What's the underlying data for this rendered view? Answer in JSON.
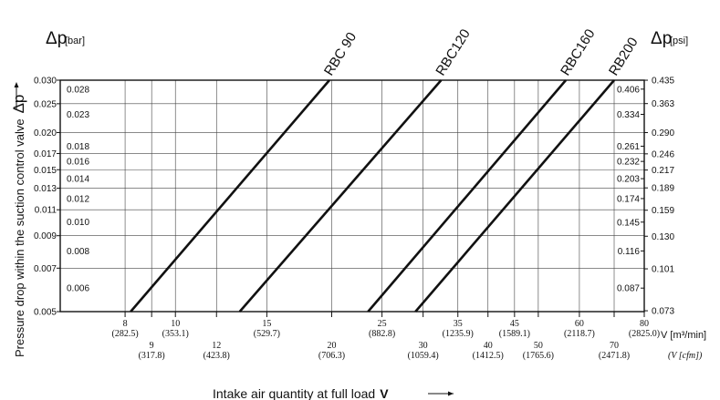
{
  "chart_data": {
    "type": "line",
    "xlabel": "Intake air quantity at full load",
    "xlabel_symbol": "V",
    "ylabel": "Pressure drop within the suction control valve",
    "ylabel_symbol": "Δp",
    "left_unit_symbol": "Δp",
    "left_unit": "[bar]",
    "right_unit_symbol": "Δp",
    "right_unit": "[psi]",
    "x_unit_primary": "V [m³/min]",
    "x_unit_secondary": "(V [cfm])",
    "xlim": [
      6,
      80
    ],
    "ylim": [
      0.005,
      0.03
    ],
    "y_scale": "log",
    "x_scale": "log",
    "grid": true,
    "x_ticks": [
      {
        "v": 8,
        "label": "8",
        "sub": "(282.5)",
        "row": 1
      },
      {
        "v": 9,
        "label": "9",
        "sub": "(317.8)",
        "row": 2
      },
      {
        "v": 10,
        "label": "10",
        "sub": "(353.1)",
        "row": 1
      },
      {
        "v": 12,
        "label": "12",
        "sub": "(423.8)",
        "row": 2
      },
      {
        "v": 15,
        "label": "15",
        "sub": "(529.7)",
        "row": 1
      },
      {
        "v": 20,
        "label": "20",
        "sub": "(706.3)",
        "row": 2
      },
      {
        "v": 25,
        "label": "25",
        "sub": "(882.8)",
        "row": 1
      },
      {
        "v": 30,
        "label": "30",
        "sub": "(1059.4)",
        "row": 2
      },
      {
        "v": 35,
        "label": "35",
        "sub": "(1235.9)",
        "row": 1
      },
      {
        "v": 40,
        "label": "40",
        "sub": "(1412.5)",
        "row": 2
      },
      {
        "v": 45,
        "label": "45",
        "sub": "(1589.1)",
        "row": 1
      },
      {
        "v": 50,
        "label": "50",
        "sub": "(1765.6)",
        "row": 2
      },
      {
        "v": 60,
        "label": "60",
        "sub": "(2118.7)",
        "row": 1
      },
      {
        "v": 70,
        "label": "70",
        "sub": "(2471.8)",
        "row": 2
      },
      {
        "v": 80,
        "label": "80",
        "sub": "(2825.0)",
        "row": 1
      }
    ],
    "y_left_outer": [
      "0.030",
      "0.025",
      "0.020",
      "0.017",
      "0.015",
      "0.013",
      "0.011",
      "0.009",
      "0.007",
      "0.005"
    ],
    "y_left_inner": [
      "0.028",
      "0.023",
      "0.018",
      "0.016",
      "0.014",
      "0.012",
      "0.010",
      "0.008",
      "0.006"
    ],
    "y_right_inner": [
      "0.406",
      "0.334",
      "0.261",
      "0.232",
      "0.203",
      "0.174",
      "0.145",
      "0.116",
      "0.087"
    ],
    "y_right_outer": [
      "0.435",
      "0.363",
      "0.290",
      "0.246",
      "0.217",
      "0.189",
      "0.159",
      "0.130",
      "0.101",
      "0.073"
    ],
    "series": [
      {
        "name": "RBC 90",
        "x": [
          8.2,
          19.8
        ],
        "y": [
          0.005,
          0.03
        ]
      },
      {
        "name": "RBC120",
        "x": [
          13.3,
          32.5
        ],
        "y": [
          0.005,
          0.03
        ]
      },
      {
        "name": "RBC160",
        "x": [
          23.5,
          56.5
        ],
        "y": [
          0.005,
          0.03
        ]
      },
      {
        "name": "RB200",
        "x": [
          29.0,
          70.0
        ],
        "y": [
          0.005,
          0.03
        ]
      }
    ]
  }
}
